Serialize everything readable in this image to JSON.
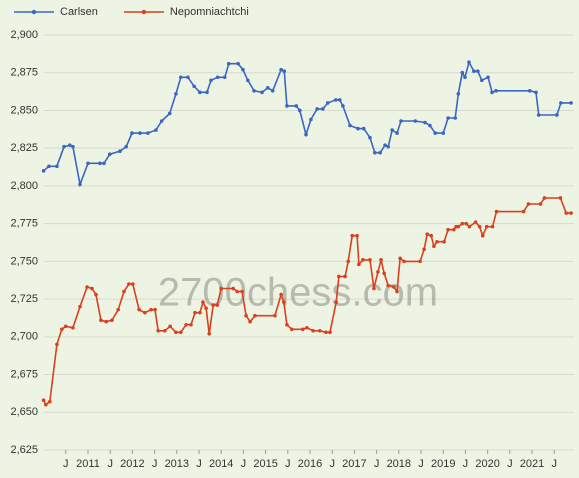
{
  "chart_data": {
    "type": "line",
    "watermark": "2700chess.com",
    "xlim": [
      2010,
      2021.95
    ],
    "ylim": [
      2625,
      2900
    ],
    "xticks": [
      {
        "value": 2010.5,
        "label": "J"
      },
      2011,
      {
        "value": 2011.5,
        "label": "J"
      },
      2012,
      {
        "value": 2012.5,
        "label": "J"
      },
      2013,
      {
        "value": 2013.5,
        "label": "J"
      },
      2014,
      {
        "value": 2014.5,
        "label": "J"
      },
      2015,
      {
        "value": 2015.5,
        "label": "J"
      },
      2016,
      {
        "value": 2016.5,
        "label": "J"
      },
      2017,
      {
        "value": 2017.5,
        "label": "J"
      },
      2018,
      {
        "value": 2018.5,
        "label": "J"
      },
      2019,
      {
        "value": 2019.5,
        "label": "J"
      },
      2020,
      {
        "value": 2020.5,
        "label": "J"
      },
      2021,
      {
        "value": 2021.5,
        "label": "J"
      }
    ],
    "yticks": [
      {
        "value": 2625,
        "label": "2,625"
      },
      {
        "value": 2650,
        "label": "2,650"
      },
      {
        "value": 2675,
        "label": "2,675"
      },
      {
        "value": 2700,
        "label": "2,700"
      },
      {
        "value": 2725,
        "label": "2,725"
      },
      {
        "value": 2750,
        "label": "2,750"
      },
      {
        "value": 2775,
        "label": "2,775"
      },
      {
        "value": 2800,
        "label": "2,800"
      },
      {
        "value": 2825,
        "label": "2,825"
      },
      {
        "value": 2850,
        "label": "2,850"
      },
      {
        "value": 2875,
        "label": "2,875"
      },
      {
        "value": 2900,
        "label": "2,900"
      }
    ],
    "grid": true,
    "legend": "top-left",
    "series": [
      {
        "name": "Carlsen",
        "color": "#3a66c4",
        "x": [
          2010.0,
          2010.12,
          2010.3,
          2010.46,
          2010.59,
          2010.66,
          2010.82,
          2011.0,
          2011.27,
          2011.36,
          2011.49,
          2011.72,
          2011.86,
          2011.99,
          2012.17,
          2012.35,
          2012.53,
          2012.66,
          2012.84,
          2012.98,
          2013.09,
          2013.25,
          2013.39,
          2013.52,
          2013.68,
          2013.77,
          2013.92,
          2014.08,
          2014.17,
          2014.38,
          2014.49,
          2014.6,
          2014.74,
          2014.92,
          2015.05,
          2015.16,
          2015.35,
          2015.42,
          2015.48,
          2015.69,
          2015.77,
          2015.91,
          2016.02,
          2016.16,
          2016.29,
          2016.4,
          2016.58,
          2016.67,
          2016.74,
          2016.9,
          2017.08,
          2017.21,
          2017.35,
          2017.46,
          2017.58,
          2017.69,
          2017.76,
          2017.85,
          2017.96,
          2018.05,
          2018.37,
          2018.59,
          2018.7,
          2018.82,
          2019.0,
          2019.11,
          2019.27,
          2019.34,
          2019.43,
          2019.49,
          2019.58,
          2019.69,
          2019.78,
          2019.87,
          2020.01,
          2020.1,
          2020.19,
          2020.95,
          2021.09,
          2021.15,
          2021.56,
          2021.65,
          2021.88
        ],
        "values": [
          2810,
          2813,
          2813,
          2826,
          2827,
          2826,
          2801,
          2815,
          2815,
          2815,
          2821,
          2823,
          2826,
          2835,
          2835,
          2835,
          2837,
          2843,
          2848,
          2861,
          2872,
          2872,
          2866,
          2862,
          2862,
          2870,
          2872,
          2872,
          2881,
          2881,
          2877,
          2870,
          2863,
          2862,
          2865,
          2863,
          2877,
          2876,
          2853,
          2853,
          2850,
          2834,
          2844,
          2851,
          2851,
          2855,
          2857,
          2857,
          2853,
          2840,
          2838,
          2838,
          2832,
          2822,
          2822,
          2827,
          2826,
          2837,
          2835,
          2843,
          2843,
          2842,
          2840,
          2835,
          2835,
          2845,
          2845,
          2861,
          2875,
          2872,
          2882,
          2876,
          2876,
          2870,
          2872,
          2862,
          2863,
          2863,
          2862,
          2847,
          2847,
          2855,
          2855
        ]
      },
      {
        "name": "Nepomniachtchi",
        "color": "#d9401c",
        "x": [
          2010.0,
          2010.05,
          2010.14,
          2010.3,
          2010.41,
          2010.5,
          2010.66,
          2010.82,
          2010.98,
          2011.09,
          2011.18,
          2011.29,
          2011.41,
          2011.54,
          2011.68,
          2011.81,
          2011.92,
          2012.01,
          2012.15,
          2012.28,
          2012.42,
          2012.51,
          2012.58,
          2012.73,
          2012.85,
          2012.98,
          2013.09,
          2013.21,
          2013.32,
          2013.41,
          2013.52,
          2013.59,
          2013.66,
          2013.73,
          2013.82,
          2013.91,
          2014.0,
          2014.27,
          2014.36,
          2014.47,
          2014.56,
          2014.65,
          2014.76,
          2015.21,
          2015.35,
          2015.41,
          2015.48,
          2015.59,
          2015.84,
          2015.93,
          2016.07,
          2016.22,
          2016.36,
          2016.45,
          2016.59,
          2016.65,
          2016.79,
          2016.86,
          2016.95,
          2017.06,
          2017.1,
          2017.19,
          2017.35,
          2017.44,
          2017.53,
          2017.6,
          2017.67,
          2017.76,
          2017.89,
          2017.96,
          2018.03,
          2018.12,
          2018.48,
          2018.57,
          2018.64,
          2018.73,
          2018.79,
          2018.86,
          2019.02,
          2019.11,
          2019.24,
          2019.29,
          2019.34,
          2019.43,
          2019.52,
          2019.59,
          2019.73,
          2019.82,
          2019.89,
          2019.98,
          2020.11,
          2020.2,
          2020.81,
          2020.92,
          2021.19,
          2021.28,
          2021.64,
          2021.77,
          2021.88
        ],
        "values": [
          2658,
          2655,
          2657,
          2695,
          2705,
          2707,
          2706,
          2720,
          2733,
          2732,
          2728,
          2711,
          2710,
          2711,
          2718,
          2730,
          2735,
          2735,
          2718,
          2716,
          2718,
          2718,
          2704,
          2704,
          2707,
          2703,
          2703,
          2708,
          2708,
          2716,
          2716,
          2723,
          2719,
          2702,
          2721,
          2721,
          2732,
          2732,
          2730,
          2730,
          2714,
          2710,
          2714,
          2714,
          2728,
          2723,
          2708,
          2705,
          2705,
          2706,
          2704,
          2704,
          2703,
          2703,
          2723,
          2740,
          2740,
          2750,
          2767,
          2767,
          2748,
          2751,
          2751,
          2732,
          2743,
          2751,
          2742,
          2734,
          2733,
          2730,
          2752,
          2750,
          2750,
          2758,
          2768,
          2767,
          2760,
          2763,
          2763,
          2771,
          2771,
          2773,
          2773,
          2775,
          2775,
          2773,
          2776,
          2773,
          2767,
          2773,
          2773,
          2783,
          2783,
          2788,
          2788,
          2792,
          2792,
          2782,
          2782
        ]
      }
    ]
  }
}
